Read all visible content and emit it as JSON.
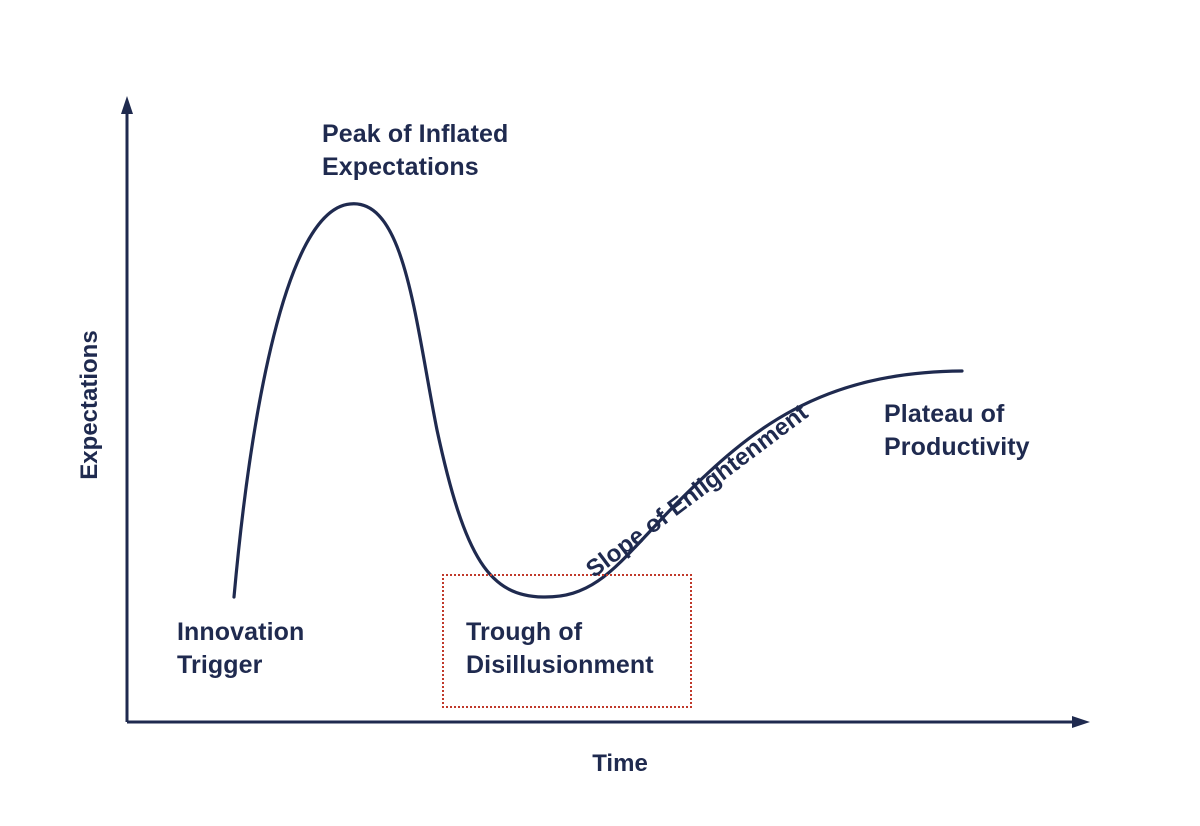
{
  "diagram": {
    "axes": {
      "y_label": "Expectations",
      "x_label": "Time"
    },
    "phases": {
      "innovation_trigger": {
        "line1": "Innovation",
        "line2": "Trigger"
      },
      "peak": {
        "line1": "Peak of Inflated",
        "line2": "Expectations"
      },
      "trough": {
        "line1": "Trough of",
        "line2": "Disillusionment"
      },
      "slope": "Slope of Enlightenment",
      "plateau": {
        "line1": "Plateau of",
        "line2": "Productivity"
      }
    },
    "highlighted_phase": "trough",
    "colors": {
      "ink": "#1f2a4f",
      "highlight": "#c0392b",
      "background": "#ffffff"
    }
  }
}
